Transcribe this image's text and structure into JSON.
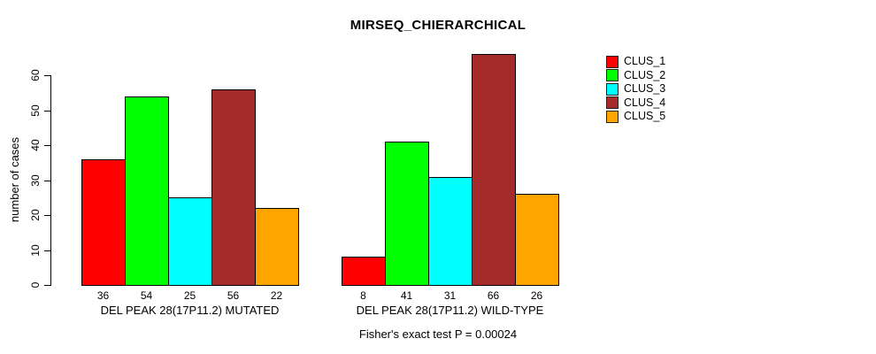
{
  "chart_data": {
    "type": "bar",
    "title": "MIRSEQ_CHIERARCHICAL",
    "ylabel": "number of cases",
    "xlabel": "",
    "yticks": [
      0,
      10,
      20,
      30,
      40,
      50,
      60
    ],
    "ylim": [
      0,
      66
    ],
    "grid": false,
    "legend_position": "right-outside",
    "categories": [
      "DEL PEAK 28(17P11.2) MUTATED",
      "DEL PEAK 28(17P11.2) WILD-TYPE"
    ],
    "series": [
      {
        "name": "CLUS_1",
        "color": "#FF0000",
        "values": [
          36,
          8
        ]
      },
      {
        "name": "CLUS_2",
        "color": "#00FF00",
        "values": [
          54,
          41
        ]
      },
      {
        "name": "CLUS_3",
        "color": "#00FFFF",
        "values": [
          25,
          31
        ]
      },
      {
        "name": "CLUS_4",
        "color": "#A52A2A",
        "values": [
          56,
          66
        ]
      },
      {
        "name": "CLUS_5",
        "color": "#FFA500",
        "values": [
          22,
          26
        ]
      }
    ],
    "annotation": "Fisher's exact test P = 0.00024"
  },
  "colors": {
    "axis": "#000000",
    "text": "#000000",
    "background": "#FFFFFF"
  }
}
